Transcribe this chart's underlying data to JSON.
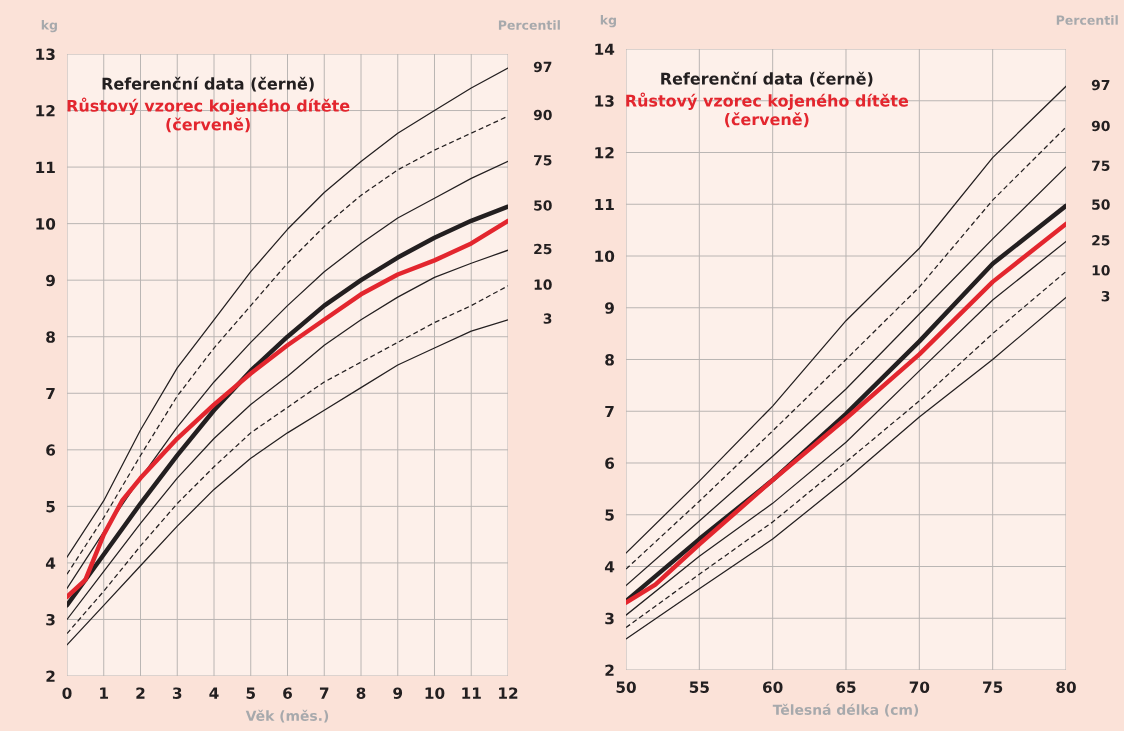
{
  "chart_data": [
    {
      "type": "line",
      "title": "Referenční data (černě)",
      "subtitle": "Růstový vzorec kojeného dítěte\n(červeně)",
      "xlabel": "Věk (měs.)",
      "ylabel": "kg",
      "annotations": [
        "Percentil"
      ],
      "x": [
        0,
        1,
        2,
        3,
        4,
        5,
        6,
        7,
        8,
        9,
        10,
        11,
        12
      ],
      "xlim": [
        0,
        12
      ],
      "xticks": [
        0,
        1,
        2,
        3,
        4,
        5,
        6,
        7,
        8,
        9,
        10,
        11,
        12
      ],
      "ylim": [
        2,
        13
      ],
      "yticks": [
        2,
        3,
        4,
        5,
        6,
        7,
        8,
        9,
        10,
        11,
        12,
        13
      ],
      "grid": true,
      "series": [
        {
          "name": "97",
          "color": "#231f20",
          "line_style": "solid",
          "values": [
            4.1,
            5.1,
            6.35,
            7.45,
            8.3,
            9.15,
            9.9,
            10.55,
            11.1,
            11.6,
            12.0,
            12.4,
            12.75
          ]
        },
        {
          "name": "90",
          "color": "#231f20",
          "line_style": "dashed",
          "values": [
            3.8,
            4.8,
            5.9,
            6.95,
            7.8,
            8.55,
            9.3,
            9.95,
            10.5,
            10.95,
            11.3,
            11.6,
            11.9
          ]
        },
        {
          "name": "75",
          "color": "#231f20",
          "line_style": "solid",
          "values": [
            3.55,
            4.55,
            5.5,
            6.4,
            7.2,
            7.9,
            8.55,
            9.15,
            9.65,
            10.1,
            10.45,
            10.8,
            11.1
          ]
        },
        {
          "name": "50",
          "color": "#231f20",
          "line_style": "solid",
          "values": [
            3.25,
            4.15,
            5.05,
            5.9,
            6.7,
            7.4,
            8.0,
            8.55,
            9.0,
            9.4,
            9.75,
            10.05,
            10.3
          ]
        },
        {
          "name": "25",
          "color": "#231f20",
          "line_style": "solid",
          "values": [
            3.0,
            3.85,
            4.7,
            5.5,
            6.2,
            6.8,
            7.3,
            7.85,
            8.3,
            8.7,
            9.05,
            9.3,
            9.53
          ]
        },
        {
          "name": "10",
          "color": "#231f20",
          "line_style": "dashed",
          "values": [
            2.75,
            3.5,
            4.3,
            5.05,
            5.7,
            6.3,
            6.75,
            7.2,
            7.55,
            7.9,
            8.25,
            8.55,
            8.9
          ]
        },
        {
          "name": "3",
          "color": "#231f20",
          "line_style": "solid",
          "values": [
            2.55,
            3.25,
            3.95,
            4.65,
            5.3,
            5.85,
            6.3,
            6.7,
            7.1,
            7.5,
            7.8,
            8.1,
            8.3
          ]
        },
        {
          "color": "#e3262e",
          "line_style": "solid",
          "x": [
            0,
            0.5,
            1,
            1.5,
            2,
            3,
            4,
            5,
            6,
            7,
            8,
            9,
            10,
            11,
            12
          ],
          "values": [
            3.4,
            3.7,
            4.5,
            5.1,
            5.5,
            6.2,
            6.8,
            7.35,
            7.85,
            8.3,
            8.75,
            9.1,
            9.35,
            9.65,
            10.05
          ]
        }
      ]
    },
    {
      "type": "line",
      "title": "Referenční data (černě)",
      "subtitle": "Růstový vzorec kojeného dítěte\n(červeně)",
      "xlabel": "Tělesná délka (cm)",
      "ylabel": "kg",
      "annotations": [
        "Percentil"
      ],
      "x": [
        50,
        55,
        60,
        65,
        70,
        75,
        80
      ],
      "xlim": [
        50,
        80
      ],
      "xticks": [
        50,
        55,
        60,
        65,
        70,
        75,
        80
      ],
      "ylim": [
        2,
        14
      ],
      "yticks": [
        2,
        3,
        4,
        5,
        6,
        7,
        8,
        9,
        10,
        11,
        12,
        13,
        14
      ],
      "grid": true,
      "series": [
        {
          "name": "97",
          "color": "#231f20",
          "line_style": "solid",
          "values": [
            4.26,
            5.65,
            7.1,
            8.75,
            10.15,
            11.9,
            13.28
          ]
        },
        {
          "name": "90",
          "color": "#231f20",
          "line_style": "dashed",
          "values": [
            3.95,
            5.26,
            6.62,
            8.0,
            9.4,
            11.08,
            12.49
          ]
        },
        {
          "name": "75",
          "color": "#231f20",
          "line_style": "solid",
          "values": [
            3.63,
            4.88,
            6.13,
            7.43,
            8.88,
            10.33,
            11.72
          ]
        },
        {
          "name": "50",
          "color": "#231f20",
          "line_style": "solid",
          "values": [
            3.33,
            4.53,
            5.67,
            6.95,
            8.35,
            9.85,
            10.97
          ]
        },
        {
          "name": "25",
          "color": "#231f20",
          "line_style": "solid",
          "values": [
            3.06,
            4.2,
            5.22,
            6.4,
            7.78,
            9.15,
            10.28
          ]
        },
        {
          "name": "10",
          "color": "#231f20",
          "line_style": "dashed",
          "values": [
            2.82,
            3.85,
            4.86,
            6.02,
            7.2,
            8.5,
            9.7
          ]
        },
        {
          "name": "3",
          "color": "#231f20",
          "line_style": "solid",
          "values": [
            2.6,
            3.57,
            4.53,
            5.67,
            6.89,
            8.0,
            9.2
          ]
        },
        {
          "color": "#e3262e",
          "line_style": "solid",
          "x": [
            50,
            52,
            55,
            60,
            65,
            70,
            75,
            80
          ],
          "values": [
            3.3,
            3.65,
            4.43,
            5.67,
            6.86,
            8.1,
            9.5,
            10.62
          ]
        }
      ]
    }
  ]
}
